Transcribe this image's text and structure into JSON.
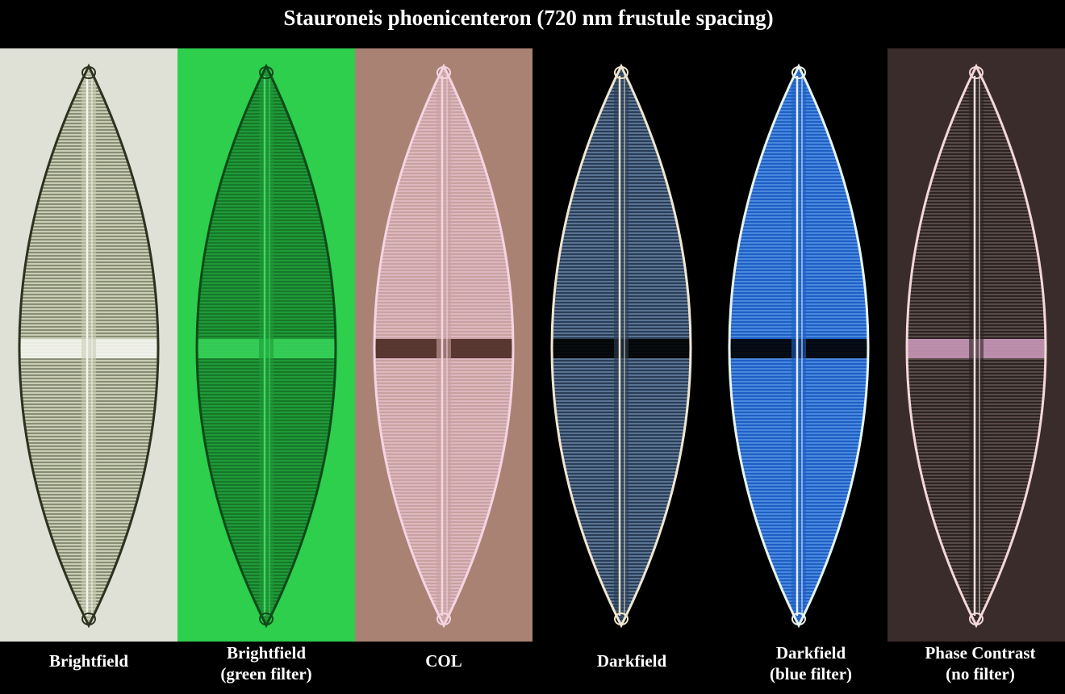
{
  "header": {
    "title": "Stauroneis phoenicenteron (720 nm frustule spacing)"
  },
  "panels": [
    {
      "caption": [
        "Brightfield"
      ]
    },
    {
      "caption": [
        "Brightfield",
        "(green filter)"
      ]
    },
    {
      "caption": [
        "COL"
      ]
    },
    {
      "caption": [
        "Darkfield"
      ]
    },
    {
      "caption": [
        "Darkfield",
        "(blue filter)"
      ]
    },
    {
      "caption": [
        "Phase Contrast",
        "(no filter)"
      ]
    }
  ]
}
